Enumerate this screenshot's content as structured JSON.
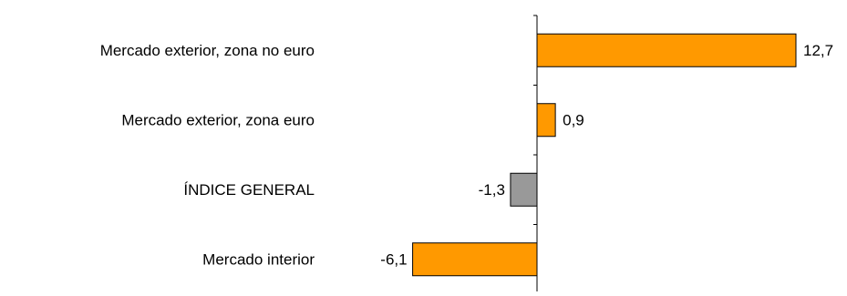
{
  "chart_data": {
    "type": "bar",
    "orientation": "horizontal",
    "categories": [
      "Mercado exterior, zona no euro",
      "Mercado exterior, zona euro",
      "ÍNDICE GENERAL",
      "Mercado interior"
    ],
    "values": [
      12.7,
      0.9,
      -1.3,
      -6.1
    ],
    "value_labels": [
      "12,7",
      "0,9",
      "-1,3",
      "-6,1"
    ],
    "colors": [
      "#FF9900",
      "#FF9900",
      "#999999",
      "#FF9900"
    ],
    "xlim": [
      -7,
      14
    ],
    "grid": false,
    "legend": "none",
    "title": "",
    "xlabel": "",
    "ylabel": ""
  }
}
